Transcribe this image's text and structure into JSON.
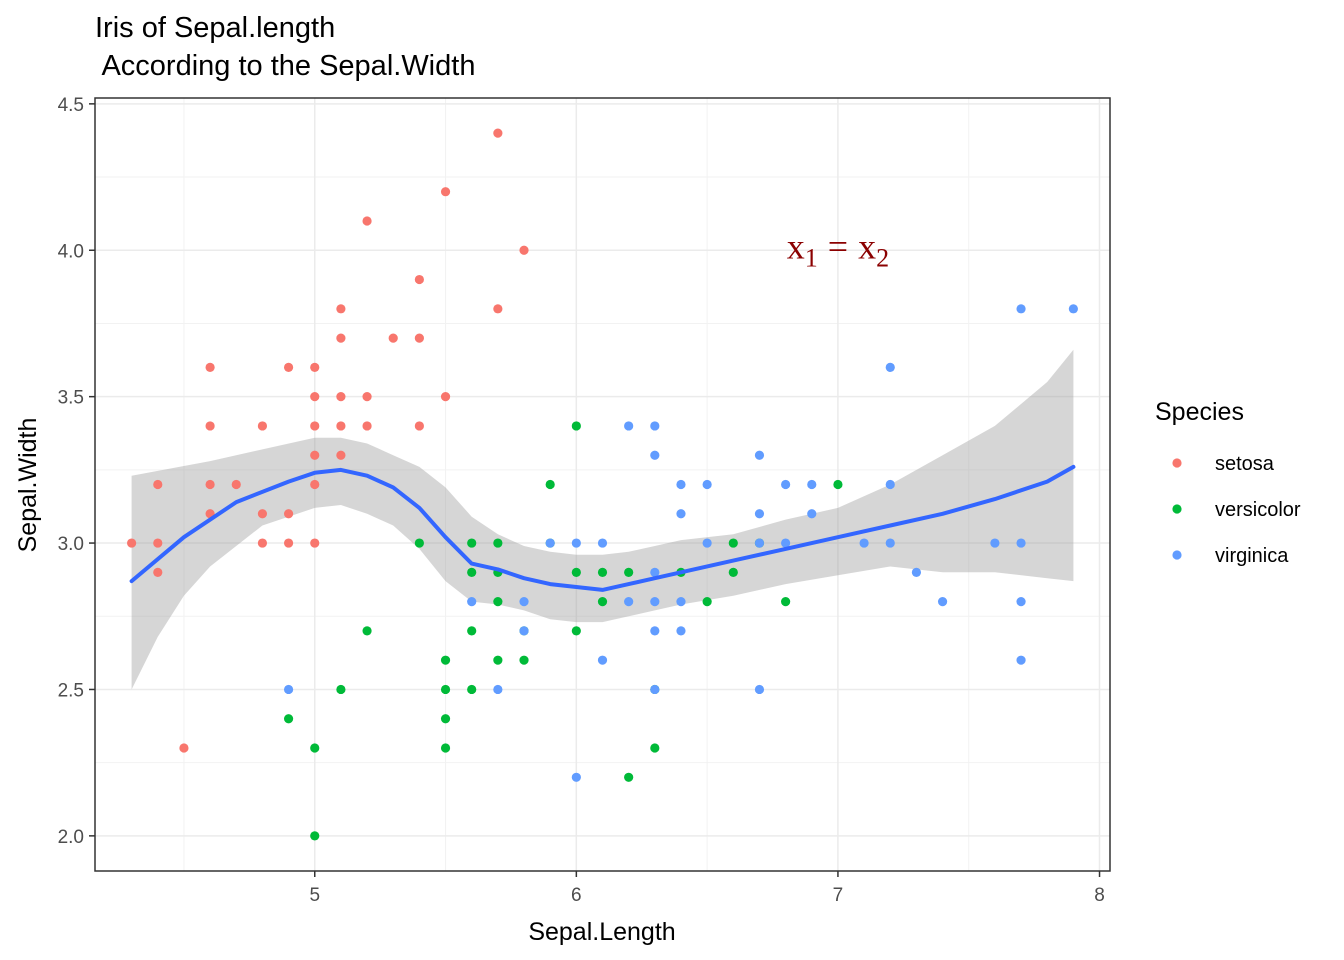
{
  "title_line1": "Iris of Sepal.length",
  "title_line2": " According to the Sepal.Width",
  "chart_data": {
    "type": "scatter",
    "title": "Iris of Sepal.length\n According to the Sepal.Width",
    "xlabel": "Sepal.Length",
    "ylabel": "Sepal.Width",
    "xlim": [
      4.16,
      8.04
    ],
    "ylim": [
      1.88,
      4.52
    ],
    "x_ticks": [
      5,
      6,
      7,
      8
    ],
    "y_ticks": [
      2.0,
      2.5,
      3.0,
      3.5,
      4.0,
      4.5
    ],
    "x_tick_labels": [
      "5",
      "6",
      "7",
      "8"
    ],
    "y_tick_labels": [
      "2.0",
      "2.5",
      "3.0",
      "3.5",
      "4.0",
      "4.5"
    ],
    "grid": true,
    "legend": {
      "title": "Species",
      "placement": "right",
      "entries": [
        "setosa",
        "versicolor",
        "virginica"
      ]
    },
    "colors": {
      "setosa": "#F8766D",
      "versicolor": "#00BA38",
      "virginica": "#619CFF",
      "smooth_line": "#3366FF",
      "confidence_band": "#999999",
      "annotation": "#8B0000"
    },
    "series": [
      {
        "name": "setosa",
        "points": [
          [
            4.3,
            3.0
          ],
          [
            4.4,
            3.2
          ],
          [
            4.4,
            3.0
          ],
          [
            4.4,
            2.9
          ],
          [
            4.5,
            2.3
          ],
          [
            4.6,
            3.6
          ],
          [
            4.6,
            3.4
          ],
          [
            4.6,
            3.2
          ],
          [
            4.6,
            3.1
          ],
          [
            4.7,
            3.2
          ],
          [
            4.8,
            3.4
          ],
          [
            4.8,
            3.1
          ],
          [
            4.8,
            3.0
          ],
          [
            4.9,
            3.6
          ],
          [
            4.9,
            3.1
          ],
          [
            4.9,
            3.0
          ],
          [
            5.0,
            3.6
          ],
          [
            5.0,
            3.5
          ],
          [
            5.0,
            3.4
          ],
          [
            5.0,
            3.3
          ],
          [
            5.0,
            3.2
          ],
          [
            5.0,
            3.0
          ],
          [
            5.1,
            3.8
          ],
          [
            5.1,
            3.7
          ],
          [
            5.1,
            3.5
          ],
          [
            5.1,
            3.4
          ],
          [
            5.1,
            3.3
          ],
          [
            5.2,
            4.1
          ],
          [
            5.2,
            3.5
          ],
          [
            5.2,
            3.4
          ],
          [
            5.3,
            3.7
          ],
          [
            5.4,
            3.9
          ],
          [
            5.4,
            3.7
          ],
          [
            5.4,
            3.4
          ],
          [
            5.5,
            4.2
          ],
          [
            5.5,
            3.5
          ],
          [
            5.7,
            4.4
          ],
          [
            5.7,
            3.8
          ],
          [
            5.8,
            4.0
          ]
        ]
      },
      {
        "name": "versicolor",
        "points": [
          [
            4.9,
            2.4
          ],
          [
            5.0,
            2.3
          ],
          [
            5.0,
            2.0
          ],
          [
            5.1,
            2.5
          ],
          [
            5.2,
            2.7
          ],
          [
            5.4,
            3.0
          ],
          [
            5.5,
            2.6
          ],
          [
            5.5,
            2.5
          ],
          [
            5.5,
            2.4
          ],
          [
            5.5,
            2.3
          ],
          [
            5.6,
            3.0
          ],
          [
            5.6,
            2.9
          ],
          [
            5.6,
            2.7
          ],
          [
            5.6,
            2.5
          ],
          [
            5.7,
            3.0
          ],
          [
            5.7,
            2.9
          ],
          [
            5.7,
            2.8
          ],
          [
            5.7,
            2.6
          ],
          [
            5.8,
            2.7
          ],
          [
            5.8,
            2.6
          ],
          [
            5.9,
            3.2
          ],
          [
            5.9,
            3.0
          ],
          [
            6.0,
            3.4
          ],
          [
            6.0,
            2.9
          ],
          [
            6.0,
            2.7
          ],
          [
            6.1,
            2.9
          ],
          [
            6.1,
            2.8
          ],
          [
            6.2,
            2.9
          ],
          [
            6.2,
            2.2
          ],
          [
            6.3,
            2.5
          ],
          [
            6.3,
            2.3
          ],
          [
            6.4,
            2.9
          ],
          [
            6.5,
            2.8
          ],
          [
            6.6,
            3.0
          ],
          [
            6.6,
            2.9
          ],
          [
            6.7,
            3.0
          ],
          [
            6.8,
            2.8
          ],
          [
            7.0,
            3.2
          ]
        ]
      },
      {
        "name": "virginica",
        "points": [
          [
            4.9,
            2.5
          ],
          [
            5.6,
            2.8
          ],
          [
            5.7,
            2.5
          ],
          [
            5.8,
            2.8
          ],
          [
            5.8,
            2.7
          ],
          [
            5.9,
            3.0
          ],
          [
            6.0,
            3.0
          ],
          [
            6.0,
            2.2
          ],
          [
            6.1,
            3.0
          ],
          [
            6.1,
            2.6
          ],
          [
            6.2,
            3.4
          ],
          [
            6.2,
            2.8
          ],
          [
            6.3,
            3.4
          ],
          [
            6.3,
            3.3
          ],
          [
            6.3,
            2.9
          ],
          [
            6.3,
            2.8
          ],
          [
            6.3,
            2.7
          ],
          [
            6.3,
            2.5
          ],
          [
            6.4,
            3.2
          ],
          [
            6.4,
            3.1
          ],
          [
            6.4,
            2.8
          ],
          [
            6.4,
            2.7
          ],
          [
            6.5,
            3.2
          ],
          [
            6.5,
            3.0
          ],
          [
            6.7,
            3.3
          ],
          [
            6.7,
            3.1
          ],
          [
            6.7,
            3.0
          ],
          [
            6.7,
            2.5
          ],
          [
            6.8,
            3.2
          ],
          [
            6.8,
            3.0
          ],
          [
            6.9,
            3.2
          ],
          [
            6.9,
            3.1
          ],
          [
            7.1,
            3.0
          ],
          [
            7.2,
            3.6
          ],
          [
            7.2,
            3.2
          ],
          [
            7.2,
            3.0
          ],
          [
            7.3,
            2.9
          ],
          [
            7.4,
            2.8
          ],
          [
            7.6,
            3.0
          ],
          [
            7.7,
            3.8
          ],
          [
            7.7,
            3.0
          ],
          [
            7.7,
            2.8
          ],
          [
            7.7,
            2.6
          ],
          [
            7.9,
            3.8
          ]
        ]
      }
    ],
    "smooth": {
      "method": "loess",
      "points": [
        [
          4.3,
          2.87
        ],
        [
          4.5,
          3.02
        ],
        [
          4.7,
          3.14
        ],
        [
          4.9,
          3.21
        ],
        [
          5.0,
          3.24
        ],
        [
          5.1,
          3.25
        ],
        [
          5.2,
          3.23
        ],
        [
          5.3,
          3.19
        ],
        [
          5.4,
          3.12
        ],
        [
          5.5,
          3.02
        ],
        [
          5.6,
          2.93
        ],
        [
          5.7,
          2.91
        ],
        [
          5.8,
          2.88
        ],
        [
          5.9,
          2.86
        ],
        [
          6.0,
          2.85
        ],
        [
          6.1,
          2.84
        ],
        [
          6.2,
          2.86
        ],
        [
          6.3,
          2.88
        ],
        [
          6.4,
          2.9
        ],
        [
          6.6,
          2.94
        ],
        [
          6.8,
          2.98
        ],
        [
          7.0,
          3.02
        ],
        [
          7.2,
          3.06
        ],
        [
          7.4,
          3.1
        ],
        [
          7.6,
          3.15
        ],
        [
          7.8,
          3.21
        ],
        [
          7.9,
          3.26
        ]
      ],
      "band_upper": [
        [
          4.3,
          3.23
        ],
        [
          4.6,
          3.28
        ],
        [
          4.8,
          3.32
        ],
        [
          5.0,
          3.36
        ],
        [
          5.1,
          3.36
        ],
        [
          5.2,
          3.34
        ],
        [
          5.3,
          3.3
        ],
        [
          5.4,
          3.26
        ],
        [
          5.5,
          3.19
        ],
        [
          5.6,
          3.09
        ],
        [
          5.7,
          3.03
        ],
        [
          5.8,
          2.99
        ],
        [
          5.9,
          2.97
        ],
        [
          6.0,
          2.96
        ],
        [
          6.1,
          2.96
        ],
        [
          6.2,
          2.97
        ],
        [
          6.3,
          2.99
        ],
        [
          6.4,
          3.01
        ],
        [
          6.6,
          3.03
        ],
        [
          6.8,
          3.08
        ],
        [
          7.0,
          3.12
        ],
        [
          7.2,
          3.2
        ],
        [
          7.4,
          3.3
        ],
        [
          7.6,
          3.4
        ],
        [
          7.8,
          3.55
        ],
        [
          7.9,
          3.66
        ]
      ],
      "band_lower": [
        [
          4.3,
          2.5
        ],
        [
          4.4,
          2.68
        ],
        [
          4.5,
          2.82
        ],
        [
          4.6,
          2.92
        ],
        [
          4.8,
          3.06
        ],
        [
          5.0,
          3.12
        ],
        [
          5.1,
          3.13
        ],
        [
          5.2,
          3.1
        ],
        [
          5.3,
          3.06
        ],
        [
          5.4,
          2.98
        ],
        [
          5.5,
          2.87
        ],
        [
          5.6,
          2.8
        ],
        [
          5.7,
          2.79
        ],
        [
          5.8,
          2.77
        ],
        [
          5.9,
          2.74
        ],
        [
          6.0,
          2.73
        ],
        [
          6.1,
          2.73
        ],
        [
          6.2,
          2.75
        ],
        [
          6.3,
          2.77
        ],
        [
          6.4,
          2.79
        ],
        [
          6.6,
          2.82
        ],
        [
          6.8,
          2.86
        ],
        [
          7.0,
          2.89
        ],
        [
          7.2,
          2.92
        ],
        [
          7.4,
          2.9
        ],
        [
          7.6,
          2.9
        ],
        [
          7.8,
          2.88
        ],
        [
          7.9,
          2.87
        ]
      ]
    },
    "annotation": {
      "x": 7.0,
      "y": 4.0,
      "base1": "x",
      "sub1": "1",
      "operator": "=",
      "base2": "x",
      "sub2": "2"
    }
  }
}
